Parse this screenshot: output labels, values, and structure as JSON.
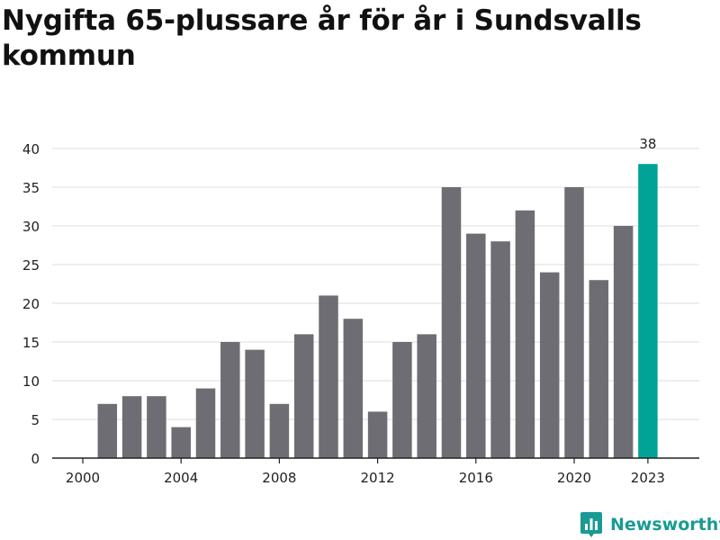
{
  "title": "Nygifta 65-plussare år för år i Sundsvalls kommun",
  "brand": {
    "name": "Newsworthy",
    "color": "#1a9a93"
  },
  "colors": {
    "bar": "#6e6d73",
    "highlight": "#00a396",
    "grid": "#dcdcdc",
    "axis": "#222222",
    "text": "#222222"
  },
  "chart_data": {
    "type": "bar",
    "x": [
      2000,
      2001,
      2002,
      2003,
      2004,
      2005,
      2006,
      2007,
      2008,
      2009,
      2010,
      2011,
      2012,
      2013,
      2014,
      2015,
      2016,
      2017,
      2018,
      2019,
      2020,
      2021,
      2022,
      2023
    ],
    "values": [
      0,
      7,
      8,
      8,
      4,
      9,
      15,
      14,
      7,
      16,
      21,
      18,
      6,
      15,
      16,
      35,
      29,
      28,
      32,
      24,
      35,
      23,
      30,
      38
    ],
    "xticks": [
      2000,
      2004,
      2008,
      2012,
      2016,
      2020,
      2023
    ],
    "yticks": [
      0,
      5,
      10,
      15,
      20,
      25,
      30,
      35,
      40
    ],
    "ylim": [
      0,
      40
    ],
    "grid": true,
    "highlight_index": 23,
    "highlight_label": "38"
  }
}
